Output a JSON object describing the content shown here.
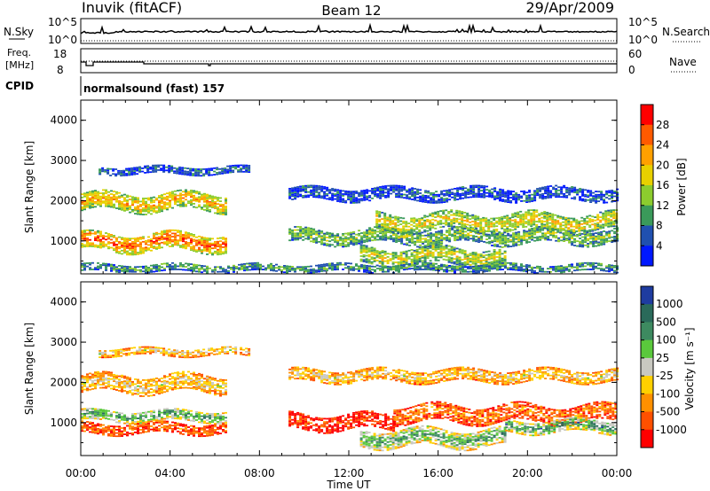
{
  "header": {
    "station": "Inuvik (fitACF)",
    "beam": "Beam 12",
    "date": "29/Apr/2009"
  },
  "params": {
    "nsky_label": "N.Sky",
    "nsky_ticks": [
      "10^5",
      "10^0"
    ],
    "nsearch_label": "N.Search",
    "nsearch_ticks": [
      "10^5",
      "10^0"
    ],
    "freq_label_1": "Freq.",
    "freq_label_2": "[MHz]",
    "freq_ticks": [
      "18",
      "8"
    ],
    "nave_label": "Nave",
    "nave_ticks": [
      "60",
      "0"
    ],
    "cpid_label": "CPID",
    "cpid_text": "normalsound (fast) 157"
  },
  "chart_data": [
    {
      "type": "heatmap",
      "name": "power-panel",
      "ylabel": "Slant Range [km]",
      "xlabel": "Time UT",
      "x_ticks": [
        "00:00",
        "04:00",
        "08:00",
        "12:00",
        "16:00",
        "20:00",
        "00:00"
      ],
      "y_ticks": [
        "1000",
        "2000",
        "3000",
        "4000"
      ],
      "ylim": [
        180,
        4500
      ],
      "xlim_hours": [
        0,
        24
      ],
      "colorbar_label": "Power [dB]",
      "colorbar_ticks": [
        "28",
        "24",
        "20",
        "16",
        "12",
        "8",
        "4"
      ],
      "colorbar_colors": [
        "#ff0000",
        "#ff5a00",
        "#ffa000",
        "#e8d000",
        "#8ccc2e",
        "#3a9a5a",
        "#2050b0",
        "#0018ff"
      ],
      "bands": [
        {
          "t0": 0,
          "t1": 6.5,
          "center": 1950,
          "width": 420,
          "level": 0.7
        },
        {
          "t0": 0,
          "t1": 6.5,
          "center": 950,
          "width": 420,
          "level": 0.85
        },
        {
          "t0": 0.8,
          "t1": 7.5,
          "center": 2750,
          "width": 200,
          "level": 0.2
        },
        {
          "t0": 9.3,
          "t1": 24,
          "center": 2150,
          "width": 300,
          "level": 0.2
        },
        {
          "t0": 9.3,
          "t1": 24,
          "center": 1100,
          "width": 360,
          "level": 0.45
        },
        {
          "t0": 13.2,
          "t1": 24,
          "center": 1450,
          "width": 420,
          "level": 0.6
        },
        {
          "t0": 12.5,
          "t1": 19,
          "center": 600,
          "width": 420,
          "level": 0.55
        },
        {
          "t0": 0,
          "t1": 24,
          "center": 320,
          "width": 200,
          "level": 0.35
        }
      ]
    },
    {
      "type": "heatmap",
      "name": "velocity-panel",
      "ylabel": "Slant Range [km]",
      "xlabel": "Time UT",
      "x_ticks": [
        "00:00",
        "04:00",
        "08:00",
        "12:00",
        "16:00",
        "20:00",
        "00:00"
      ],
      "y_ticks": [
        "1000",
        "2000",
        "3000",
        "4000"
      ],
      "ylim": [
        180,
        4500
      ],
      "xlim_hours": [
        0,
        24
      ],
      "colorbar_label": "Velocity [m s⁻¹]",
      "colorbar_ticks": [
        "1000",
        "500",
        "100",
        "25",
        "-25",
        "-100",
        "-500",
        "-1000"
      ],
      "colorbar_colors": [
        "#1e3ca0",
        "#2a6a5a",
        "#3d8a60",
        "#5ac83c",
        "#c8c8c0",
        "#ffd000",
        "#ff9000",
        "#ff5000",
        "#ff0000"
      ],
      "bands": [
        {
          "t0": 0,
          "t1": 6.5,
          "center": 1950,
          "width": 420,
          "level": 0.45
        },
        {
          "t0": 0,
          "t1": 6.5,
          "center": 1150,
          "width": 260,
          "level": 0.75
        },
        {
          "t0": 0,
          "t1": 6.5,
          "center": 850,
          "width": 280,
          "level": 0.2
        },
        {
          "t0": 0.8,
          "t1": 7.5,
          "center": 2750,
          "width": 200,
          "level": 0.45
        },
        {
          "t0": 9.3,
          "t1": 24,
          "center": 2150,
          "width": 300,
          "level": 0.45
        },
        {
          "t0": 9.3,
          "t1": 14,
          "center": 1000,
          "width": 380,
          "level": 0.1
        },
        {
          "t0": 14,
          "t1": 24,
          "center": 1200,
          "width": 420,
          "level": 0.25
        },
        {
          "t0": 12.5,
          "t1": 19,
          "center": 600,
          "width": 420,
          "level": 0.7
        },
        {
          "t0": 19,
          "t1": 24,
          "center": 900,
          "width": 320,
          "level": 0.75
        }
      ]
    }
  ]
}
